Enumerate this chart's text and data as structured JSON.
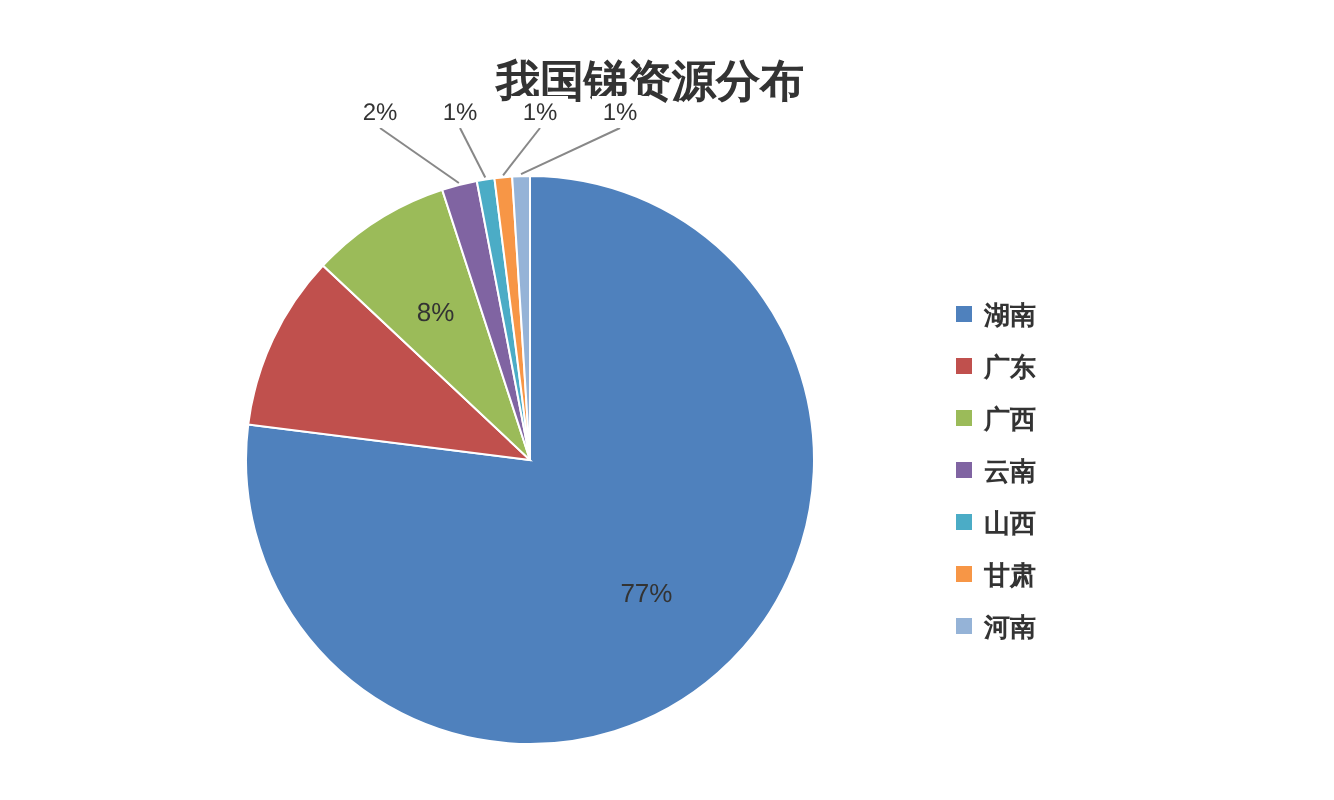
{
  "chart_data": {
    "type": "pie",
    "title": "我国锑资源分布",
    "categories": [
      "湖南",
      "广东",
      "广西",
      "云南",
      "山西",
      "甘肃",
      "河南"
    ],
    "values": [
      77,
      10,
      8,
      2,
      1,
      1,
      1
    ],
    "value_labels": [
      "77%",
      null,
      "8%",
      "2%",
      "1%",
      "1%",
      "1%"
    ],
    "colors": [
      "#4f81bd",
      "#c0504d",
      "#9bbb59",
      "#8064a2",
      "#4bacc6",
      "#f79646",
      "#95b3d7"
    ],
    "legend": "right"
  }
}
